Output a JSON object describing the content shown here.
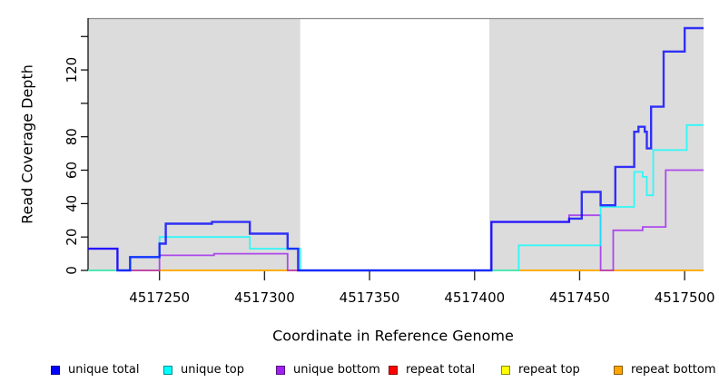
{
  "axes": {
    "x_title": "Coordinate in Reference Genome",
    "y_title": "Read Coverage Depth",
    "x_ticks": [
      4517250,
      4517300,
      4517350,
      4517400,
      4517450,
      4517500
    ],
    "x_tick_labels": [
      "4517250",
      "4517300",
      "4517350",
      "4517400",
      "4517450",
      "4517500"
    ],
    "y_ticks": [
      0,
      20,
      40,
      60,
      80,
      100,
      120,
      140
    ],
    "y_tick_labels": [
      "0",
      "20",
      "40",
      "60",
      "80",
      "",
      "120",
      ""
    ]
  },
  "plot": {
    "shade_color": "#dcdcdc",
    "top_border_color": "#8a8a8a",
    "shaded_regions": [
      [
        4517216,
        4517317
      ],
      [
        4517407,
        4517509
      ]
    ],
    "gap_region": [
      4517317,
      4517407
    ]
  },
  "chart_data": {
    "type": "line",
    "title": "",
    "xlabel": "Coordinate in Reference Genome",
    "ylabel": "Read Coverage Depth",
    "x_range": [
      4517216,
      4517509
    ],
    "y_range": [
      0,
      151
    ],
    "interpolation": "step-after",
    "grid": false,
    "legend_position": "bottom",
    "series": [
      {
        "name": "repeat total",
        "color": "#ff0000",
        "steps": [
          [
            4517216,
            0
          ]
        ]
      },
      {
        "name": "repeat top",
        "color": "#ffff00",
        "steps": [
          [
            4517216,
            0
          ]
        ]
      },
      {
        "name": "repeat bottom",
        "color": "#ffa500",
        "steps": [
          [
            4517216,
            0
          ]
        ]
      },
      {
        "name": "unique bottom",
        "color": "#a020f0",
        "steps": [
          [
            4517216,
            13
          ],
          [
            4517230,
            0
          ],
          [
            4517250,
            9
          ],
          [
            4517276,
            10
          ],
          [
            4517311,
            0
          ],
          [
            4517408,
            29
          ],
          [
            4517445,
            33
          ],
          [
            4517460,
            0
          ],
          [
            4517466,
            24
          ],
          [
            4517480,
            26
          ],
          [
            4517491,
            60
          ]
        ]
      },
      {
        "name": "unique top",
        "color": "#00ffff",
        "steps": [
          [
            4517216,
            0
          ],
          [
            4517236,
            8
          ],
          [
            4517250,
            20
          ],
          [
            4517293,
            13
          ],
          [
            4517317,
            0
          ],
          [
            4517421,
            15
          ],
          [
            4517460,
            38
          ],
          [
            4517476,
            59
          ],
          [
            4517480,
            56
          ],
          [
            4517482,
            45
          ],
          [
            4517485,
            72
          ],
          [
            4517501,
            87
          ]
        ]
      },
      {
        "name": "unique total",
        "color": "#0000ff",
        "steps": [
          [
            4517216,
            13
          ],
          [
            4517230,
            0
          ],
          [
            4517236,
            8
          ],
          [
            4517250,
            16
          ],
          [
            4517253,
            28
          ],
          [
            4517275,
            29
          ],
          [
            4517293,
            22
          ],
          [
            4517311,
            13
          ],
          [
            4517316,
            0
          ],
          [
            4517408,
            29
          ],
          [
            4517445,
            31
          ],
          [
            4517451,
            47
          ],
          [
            4517460,
            39
          ],
          [
            4517467,
            62
          ],
          [
            4517476,
            83
          ],
          [
            4517478,
            86
          ],
          [
            4517481,
            83
          ],
          [
            4517482,
            73
          ],
          [
            4517484,
            98
          ],
          [
            4517490,
            131
          ],
          [
            4517500,
            145
          ]
        ]
      }
    ]
  },
  "legend": {
    "items": [
      {
        "label": "unique total",
        "color": "#0000ff"
      },
      {
        "label": "unique top",
        "color": "#00ffff"
      },
      {
        "label": "unique bottom",
        "color": "#a020f0"
      },
      {
        "label": "repeat total",
        "color": "#ff0000"
      },
      {
        "label": "repeat top",
        "color": "#ffff00"
      },
      {
        "label": "repeat bottom",
        "color": "#ffa500"
      }
    ]
  }
}
